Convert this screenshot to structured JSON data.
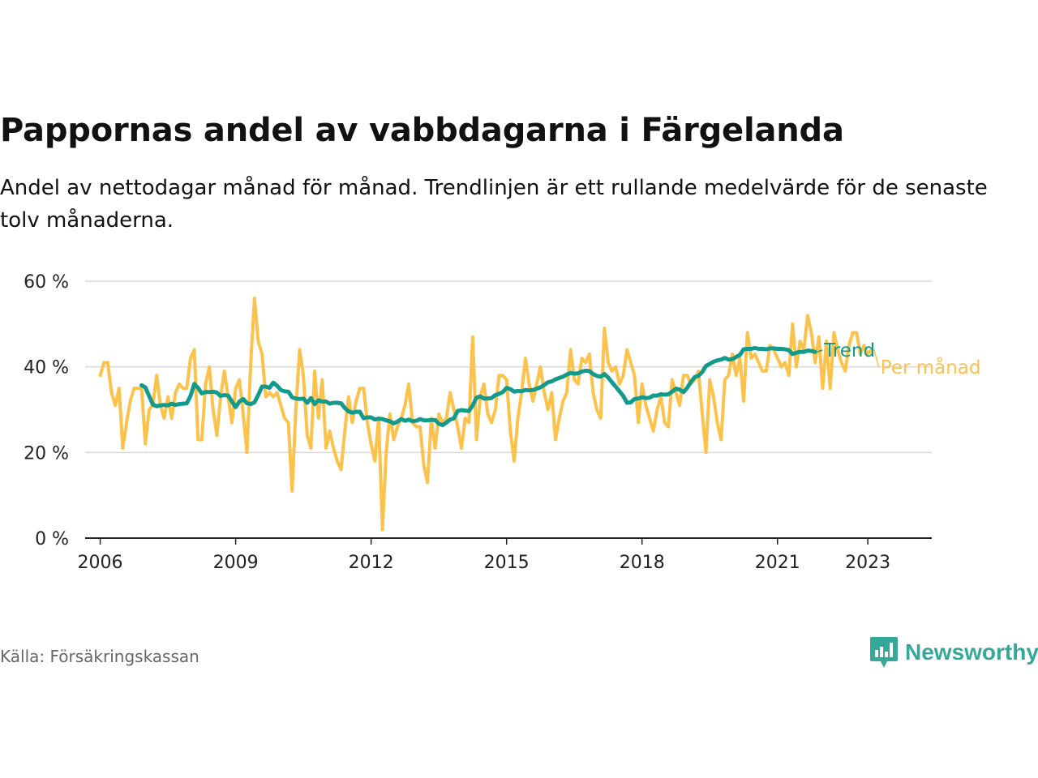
{
  "title": "Pappornas andel av vabbdagarna i Färgelanda",
  "subtitle": "Andel av nettodagar månad för månad. Trendlinjen är ett rullande medelvärde för de senaste tolv månaderna.",
  "source": "Källa: Försäkringskassan",
  "brand": "Newsworthy",
  "colors": {
    "monthly": "#fcc24c",
    "trend": "#139a8a",
    "grid": "#d9d9d9",
    "axis": "#222222",
    "brand": "#36a899"
  },
  "chart_data": {
    "type": "line",
    "x_axis_type": "date",
    "xlim": [
      "2005-09-01",
      "2024-06-01"
    ],
    "ylim": [
      0,
      60
    ],
    "grid": true,
    "y_ticks": [
      0,
      20,
      40,
      60
    ],
    "y_tick_labels": [
      "0 %",
      "20 %",
      "40 %",
      "60 %"
    ],
    "x_ticks": [
      "2006-01-01",
      "2009-01-01",
      "2012-01-01",
      "2015-01-01",
      "2018-01-01",
      "2021-01-01",
      "2023-01-01"
    ],
    "x_tick_labels": [
      "2006",
      "2009",
      "2012",
      "2015",
      "2018",
      "2021",
      "2023"
    ],
    "series": [
      {
        "name": "Per månad",
        "color": "#fcc24c",
        "start": "2006-01",
        "values": [
          38,
          41,
          41,
          34,
          31,
          35,
          21,
          27,
          32,
          35,
          35,
          35,
          22,
          30,
          31,
          38,
          31,
          28,
          33,
          28,
          34,
          36,
          35,
          35,
          42,
          44,
          23,
          23,
          36,
          40,
          30,
          24,
          33,
          39,
          33,
          27,
          35,
          37,
          29,
          20,
          41,
          56,
          46,
          43,
          33,
          34,
          33,
          34,
          31,
          28,
          27,
          11,
          30,
          44,
          38,
          24,
          21,
          39,
          28,
          37,
          21,
          25,
          21,
          18,
          16,
          25,
          33,
          27,
          32,
          35,
          35,
          27,
          22,
          18,
          28,
          2,
          20,
          29,
          23,
          26,
          28,
          31,
          36,
          27,
          26,
          26,
          17,
          13,
          28,
          21,
          29,
          27,
          28,
          34,
          30,
          26,
          21,
          28,
          27,
          47,
          23,
          33,
          36,
          29,
          27,
          30,
          38,
          38,
          37,
          25,
          18,
          28,
          34,
          42,
          36,
          32,
          36,
          40,
          34,
          30,
          34,
          23,
          28,
          32,
          34,
          44,
          37,
          36,
          42,
          41,
          43,
          34,
          30,
          28,
          49,
          41,
          39,
          40,
          36,
          38,
          44,
          41,
          38,
          27,
          36,
          31,
          28,
          25,
          30,
          33,
          27,
          26,
          37,
          34,
          31,
          38,
          38,
          36,
          37,
          39,
          29,
          20,
          37,
          33,
          27,
          23,
          37,
          38,
          43,
          38,
          42,
          32,
          48,
          42,
          43,
          41,
          39,
          39,
          45,
          44,
          42,
          40,
          41,
          38,
          50,
          40,
          46,
          44,
          52,
          48,
          41,
          47,
          35,
          46,
          35,
          48,
          44,
          41,
          39,
          45,
          48,
          48,
          43,
          45,
          43,
          44
        ]
      },
      {
        "name": "Trend",
        "color": "#139a8a",
        "start": "2006-12",
        "values": [
          35.7,
          35.2,
          33.2,
          31.2,
          30.8,
          31,
          31.1,
          31,
          31.4,
          31.1,
          31.3,
          31.4,
          31.5,
          33.2,
          36,
          35.1,
          33.8,
          34.1,
          34.1,
          34.2,
          34,
          33.2,
          33.4,
          33.3,
          31.9,
          30.6,
          31.9,
          32.5,
          31.5,
          31.3,
          31.7,
          33.4,
          35.4,
          35.4,
          35.1,
          36.3,
          35.6,
          34.6,
          34.3,
          34.2,
          32.9,
          32.6,
          32.5,
          32.6,
          31.6,
          32.7,
          31.3,
          32.2,
          31.9,
          31.9,
          31.4,
          31.6,
          31.6,
          31.5,
          30.4,
          29.6,
          29.3,
          29.5,
          29.5,
          28,
          28.2,
          28.2,
          27.7,
          27.9,
          27.8,
          27.5,
          27.3,
          26.8,
          27.2,
          27.8,
          27.4,
          27.7,
          27.3,
          27.4,
          27.8,
          27.5,
          27.5,
          27.6,
          27.6,
          26.7,
          26.4,
          27,
          27.7,
          28,
          29.7,
          29.9,
          29.8,
          29.7,
          31,
          32.8,
          33.1,
          32.6,
          32.6,
          32.7,
          33.4,
          33.7,
          34.1,
          35.1,
          34.8,
          34.2,
          34.4,
          34.3,
          34.6,
          34.5,
          34.6,
          34.9,
          35.2,
          35.8,
          36.4,
          36.6,
          37.1,
          37.4,
          37.7,
          38.2,
          38.6,
          38.4,
          38.5,
          38.9,
          39.1,
          39,
          38.3,
          37.9,
          37.7,
          38.3,
          37.5,
          36.4,
          35.4,
          34.3,
          33.2,
          31.6,
          31.7,
          32.5,
          32.6,
          32.9,
          32.7,
          32.8,
          33.3,
          33.3,
          33.6,
          33.5,
          33.6,
          34.2,
          34.9,
          34.7,
          34.1,
          35.1,
          36.5,
          37.6,
          37.9,
          38.8,
          40.2,
          40.7,
          41.2,
          41.5,
          41.7,
          42.1,
          41.7,
          41.8,
          42.3,
          42.8,
          44.1,
          44.2,
          44.2,
          44.4,
          44.2,
          44.2,
          44.1,
          44.3,
          44.3,
          44.2,
          44.2,
          44.1,
          43.9,
          43,
          43.3,
          43.5,
          43.5,
          43.8,
          43.7,
          43.5
        ]
      }
    ],
    "end_labels": [
      {
        "series": "Trend",
        "text": "Trend"
      },
      {
        "series": "Per månad",
        "text": "Per månad"
      }
    ]
  }
}
